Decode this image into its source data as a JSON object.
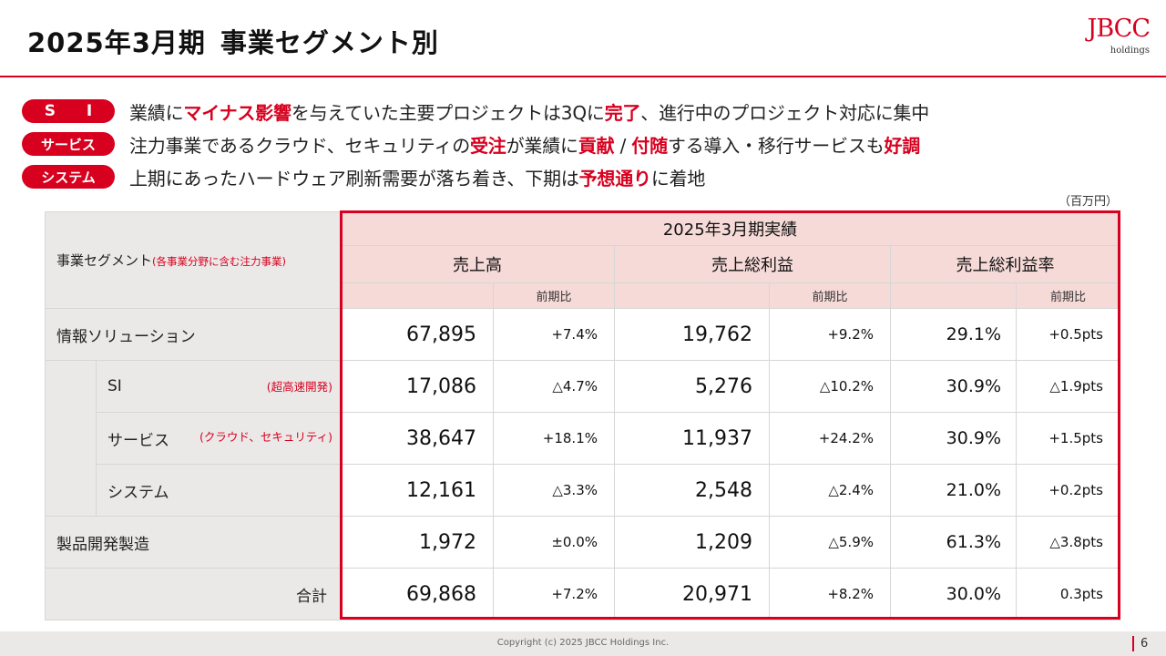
{
  "header": {
    "title_a": "2025年3月期",
    "title_b": "事業セグメント別",
    "logo": "JBCC",
    "logo_sub": "holdings",
    "accent_color": "#d7001f"
  },
  "points": [
    {
      "badge": "S I",
      "parts": [
        {
          "t": "業績に",
          "hl": false
        },
        {
          "t": "マイナス影響",
          "hl": true
        },
        {
          "t": "を与えていた主要プロジェクトは3Qに",
          "hl": false
        },
        {
          "t": "完了",
          "hl": true
        },
        {
          "t": "、進行中のプロジェクト対応に集中",
          "hl": false
        }
      ]
    },
    {
      "badge": "サービス",
      "parts": [
        {
          "t": "注力事業であるクラウド、セキュリティの",
          "hl": false
        },
        {
          "t": "受注",
          "hl": true
        },
        {
          "t": "が業績に",
          "hl": false
        },
        {
          "t": "貢献",
          "hl": true
        },
        {
          "t": " / ",
          "hl": false
        },
        {
          "t": "付随",
          "hl": true
        },
        {
          "t": "する導入・移行サービスも",
          "hl": false
        },
        {
          "t": "好調",
          "hl": true
        }
      ]
    },
    {
      "badge": "システム",
      "parts": [
        {
          "t": "上期にあったハードウェア刷新需要が落ち着き、下期は",
          "hl": false
        },
        {
          "t": "予想通り",
          "hl": true
        },
        {
          "t": "に着地",
          "hl": false
        }
      ]
    }
  ],
  "table": {
    "unit": "（百万円）",
    "segment_header": "事業セグメント",
    "segment_header_note": "(各事業分野に含む注力事業)",
    "period_header": "2025年3月期実績",
    "groups": [
      "売上高",
      "売上総利益",
      "売上総利益率"
    ],
    "yoy_label": "前期比",
    "rows": [
      {
        "label": "情報ソリューション",
        "note": "",
        "indent": false,
        "total": false,
        "sales": "67,895",
        "sales_yoy": "+7.4%",
        "gp": "19,762",
        "gp_yoy": "+9.2%",
        "gpm": "29.1%",
        "gpm_yoy": "+0.5pts"
      },
      {
        "label": "SI",
        "note": "(超高速開発)",
        "indent": true,
        "total": false,
        "sales": "17,086",
        "sales_yoy": "△4.7%",
        "gp": "5,276",
        "gp_yoy": "△10.2%",
        "gpm": "30.9%",
        "gpm_yoy": "△1.9pts"
      },
      {
        "label": "サービス",
        "note": "(クラウド、セキュリティ)",
        "indent": true,
        "total": false,
        "sales": "38,647",
        "sales_yoy": "+18.1%",
        "gp": "11,937",
        "gp_yoy": "+24.2%",
        "gpm": "30.9%",
        "gpm_yoy": "+1.5pts"
      },
      {
        "label": "システム",
        "note": "",
        "indent": true,
        "total": false,
        "sales": "12,161",
        "sales_yoy": "△3.3%",
        "gp": "2,548",
        "gp_yoy": "△2.4%",
        "gpm": "21.0%",
        "gpm_yoy": "+0.2pts"
      },
      {
        "label": "製品開発製造",
        "note": "",
        "indent": false,
        "total": false,
        "sales": "1,972",
        "sales_yoy": "±0.0%",
        "gp": "1,209",
        "gp_yoy": "△5.9%",
        "gpm": "61.3%",
        "gpm_yoy": "△3.8pts"
      },
      {
        "label": "合計",
        "note": "",
        "indent": false,
        "total": true,
        "sales": "69,868",
        "sales_yoy": "+7.2%",
        "gp": "20,971",
        "gp_yoy": "+8.2%",
        "gpm": "30.0%",
        "gpm_yoy": "0.3pts"
      }
    ]
  },
  "footer": {
    "copyright": "Copyright (c) 2025 JBCC Holdings Inc.",
    "page": "6"
  }
}
